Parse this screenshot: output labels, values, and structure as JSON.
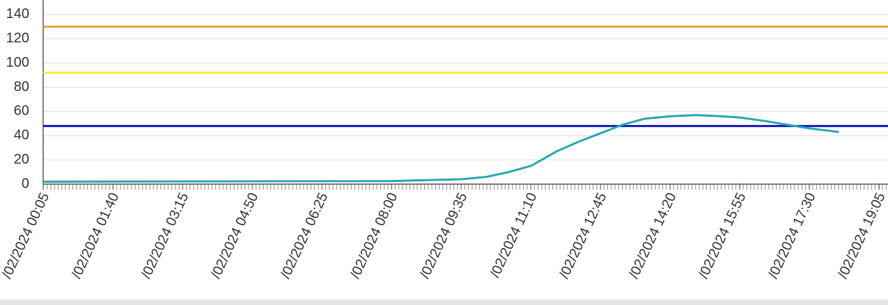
{
  "chart_data": {
    "type": "line",
    "x": [
      "00:05",
      "08:00",
      "09:35",
      "10:10",
      "10:40",
      "11:10",
      "11:45",
      "12:15",
      "12:45",
      "13:15",
      "13:45",
      "14:20",
      "14:55",
      "15:30",
      "15:55",
      "16:30",
      "17:00",
      "17:30",
      "18:10"
    ],
    "series": [
      {
        "color": "#26a7b0",
        "values": [
          2,
          2.5,
          4,
          6,
          10,
          15,
          27,
          35,
          42,
          49,
          54,
          56,
          57,
          56,
          55,
          52,
          49,
          46,
          43
        ]
      }
    ],
    "reference_lines": [
      {
        "value": 130,
        "color": "#eaa435"
      },
      {
        "value": 92,
        "color": "#f4f03c"
      },
      {
        "value": 48,
        "color": "#1018b8"
      }
    ],
    "xlim": [
      "00:05",
      "19:17"
    ],
    "xticks": [
      {
        "value": "00:05",
        "label": "/02/2024 00:05"
      },
      {
        "value": "01:40",
        "label": "/02/2024 01:40"
      },
      {
        "value": "03:15",
        "label": "/02/2024 03:15"
      },
      {
        "value": "04:50",
        "label": "/02/2024 04:50"
      },
      {
        "value": "06:25",
        "label": "/02/2024 06:25"
      },
      {
        "value": "08:00",
        "label": "/02/2024 08:00"
      },
      {
        "value": "09:35",
        "label": "/02/2024 09:35"
      },
      {
        "value": "11:10",
        "label": "/02/2024 11:10"
      },
      {
        "value": "12:45",
        "label": "/02/2024 12:45"
      },
      {
        "value": "14:20",
        "label": "/02/2024 14:20"
      },
      {
        "value": "15:55",
        "label": "/02/2024 15:55"
      },
      {
        "value": "17:30",
        "label": "/02/2024 17:30"
      },
      {
        "value": "19:05",
        "label": "/02/2024 19:05"
      }
    ],
    "ylim": [
      0,
      152
    ],
    "yticks": [
      0,
      20,
      40,
      60,
      80,
      100,
      120,
      140
    ],
    "grid": true
  }
}
